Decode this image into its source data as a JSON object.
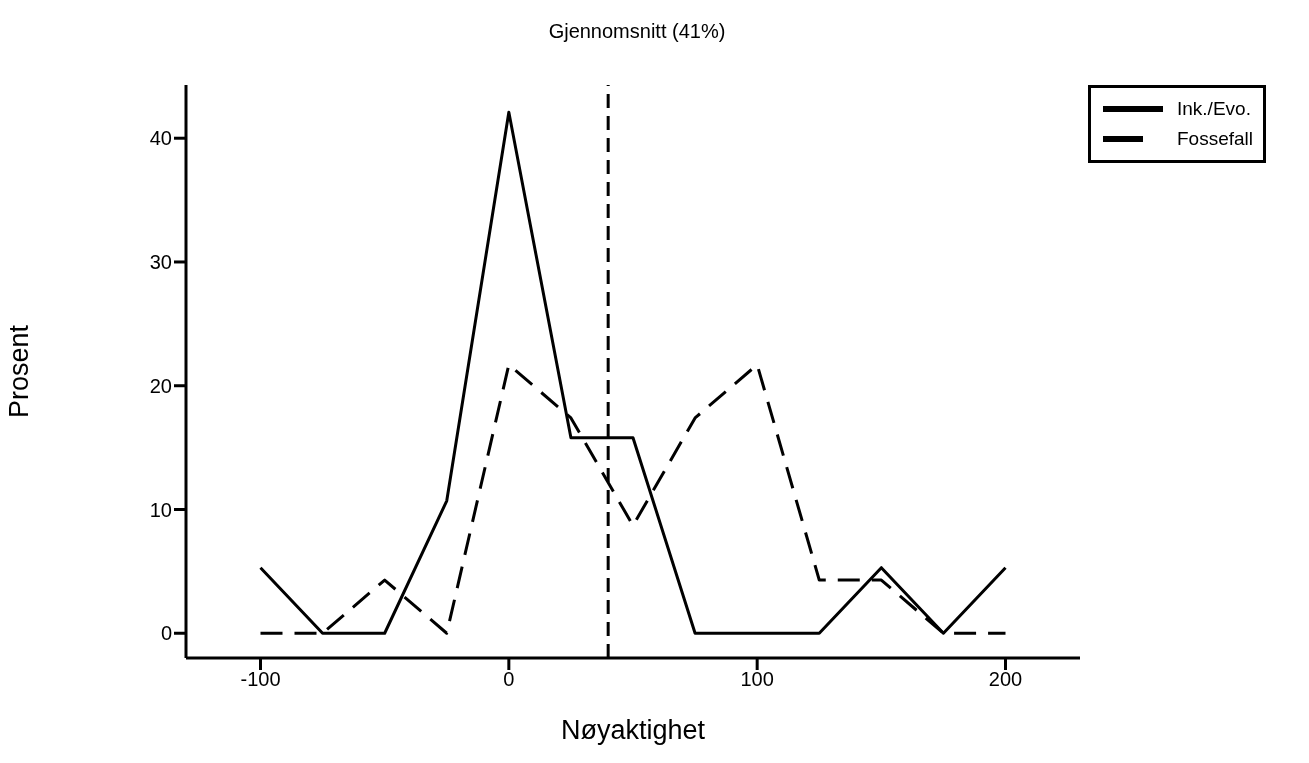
{
  "chart_data": {
    "type": "line",
    "title": "Gjennomsnitt (41%)",
    "xlabel": "Nøyaktighet",
    "ylabel": "Prosent",
    "series": [
      {
        "name": "Ink./Evo.",
        "color": "#000000",
        "line_style": "solid",
        "x": [
          -100,
          -75,
          -50,
          -25,
          0,
          25,
          50,
          75,
          100,
          125,
          150,
          175,
          200
        ],
        "values": [
          5.3,
          0,
          0,
          10.7,
          42.1,
          15.8,
          15.8,
          0,
          0,
          0,
          5.3,
          0,
          5.3
        ]
      },
      {
        "name": "Fossefall",
        "color": "#000000",
        "line_style": "dashed",
        "x": [
          -100,
          -75,
          -50,
          -25,
          0,
          25,
          50,
          75,
          100,
          125,
          150,
          175,
          200
        ],
        "values": [
          0,
          0,
          4.3,
          0,
          21.7,
          17.4,
          8.7,
          17.4,
          21.7,
          4.3,
          4.3,
          0,
          0
        ]
      }
    ],
    "xlim": [
      -130,
      230
    ],
    "xticks": [
      -100,
      0,
      100,
      200
    ],
    "ylim": [
      -2,
      44.3
    ],
    "yticks": [
      0,
      10,
      20,
      30,
      40
    ],
    "ref_lines": [
      {
        "axis": "x",
        "value": 40,
        "color": "#000000",
        "line_style": "dashed"
      }
    ],
    "grid": false,
    "legend": "top right",
    "marker": "none"
  }
}
